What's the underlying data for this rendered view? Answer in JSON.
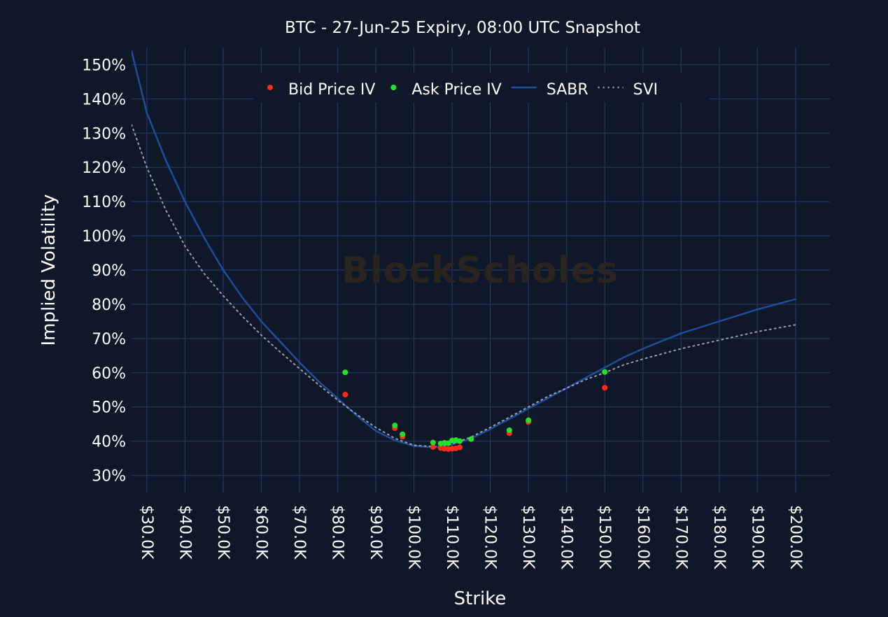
{
  "chart_data": {
    "type": "scatter",
    "title": "BTC - 27-Jun-25 Expiry, 08:00 UTC Snapshot",
    "xlabel": "Strike",
    "ylabel": "Implied Volatility",
    "watermark": "BlockScholes",
    "xlim": [
      26000,
      209000
    ],
    "ylim": [
      25,
      155
    ],
    "x_ticks": [
      30000,
      40000,
      50000,
      60000,
      70000,
      80000,
      90000,
      100000,
      110000,
      120000,
      130000,
      140000,
      150000,
      160000,
      170000,
      180000,
      190000,
      200000
    ],
    "x_tick_labels": [
      "$30.0K",
      "$40.0K",
      "$50.0K",
      "$60.0K",
      "$70.0K",
      "$80.0K",
      "$90.0K",
      "$100.0K",
      "$110.0K",
      "$120.0K",
      "$130.0K",
      "$140.0K",
      "$150.0K",
      "$160.0K",
      "$170.0K",
      "$180.0K",
      "$190.0K",
      "$200.0K"
    ],
    "y_ticks": [
      30,
      40,
      50,
      60,
      70,
      80,
      90,
      100,
      110,
      120,
      130,
      140,
      150
    ],
    "y_tick_labels": [
      "30%",
      "40%",
      "50%",
      "60%",
      "70%",
      "80%",
      "90%",
      "100%",
      "110%",
      "120%",
      "130%",
      "140%",
      "150%"
    ],
    "grid": true,
    "legend_position": "top",
    "series": [
      {
        "name": "Bid Price IV",
        "kind": "markers",
        "color": "#ff2a1a",
        "x": [
          82000,
          95000,
          97000,
          105000,
          107000,
          108000,
          109000,
          110000,
          111000,
          112000,
          125000,
          130000,
          150000
        ],
        "y": [
          53.6,
          43.8,
          41.3,
          38.3,
          38.0,
          37.8,
          37.7,
          37.8,
          37.9,
          38.2,
          42.3,
          45.6,
          55.6
        ]
      },
      {
        "name": "Ask Price IV",
        "kind": "markers",
        "color": "#22e22a",
        "x": [
          82000,
          95000,
          97000,
          105000,
          107000,
          108000,
          109000,
          110000,
          111000,
          112000,
          115000,
          125000,
          130000,
          150000
        ],
        "y": [
          60.1,
          44.6,
          42.0,
          39.6,
          39.3,
          39.5,
          39.4,
          40.2,
          40.3,
          40.0,
          40.6,
          43.2,
          46.1,
          60.2
        ]
      },
      {
        "name": "SABR",
        "kind": "line",
        "color": "#1f4e9e",
        "x": [
          26000,
          30000,
          35000,
          40000,
          45000,
          50000,
          55000,
          60000,
          65000,
          70000,
          75000,
          80000,
          85000,
          90000,
          95000,
          100000,
          105000,
          107000,
          110000,
          115000,
          120000,
          125000,
          130000,
          135000,
          140000,
          145000,
          150000,
          155000,
          160000,
          170000,
          180000,
          190000,
          200000
        ],
        "y": [
          154,
          136,
          122,
          110,
          99.5,
          90,
          82,
          75,
          69,
          63,
          57.5,
          52.5,
          47.5,
          43,
          40.2,
          38.6,
          38.2,
          38.4,
          39.0,
          40.8,
          43.5,
          46.5,
          49.5,
          52.5,
          55.5,
          58.5,
          61.5,
          64.5,
          67.0,
          71.5,
          75.0,
          78.5,
          81.5
        ]
      },
      {
        "name": "SVI",
        "kind": "dotted",
        "color": "#9aa0a8",
        "x": [
          26000,
          30000,
          35000,
          40000,
          45000,
          50000,
          55000,
          60000,
          65000,
          70000,
          75000,
          80000,
          85000,
          90000,
          95000,
          100000,
          105000,
          107000,
          110000,
          115000,
          120000,
          125000,
          130000,
          135000,
          140000,
          145000,
          150000,
          155000,
          160000,
          170000,
          180000,
          190000,
          200000
        ],
        "y": [
          132.5,
          120,
          107.5,
          97,
          89,
          82.5,
          76.5,
          71,
          66,
          61.2,
          56.5,
          52,
          47.8,
          44,
          40.8,
          38.8,
          38.4,
          38.5,
          39.2,
          41.2,
          44.0,
          47.0,
          50.0,
          53.0,
          55.5,
          58.0,
          60.0,
          62.3,
          64.0,
          67.0,
          69.5,
          72.0,
          74.0
        ]
      }
    ]
  }
}
